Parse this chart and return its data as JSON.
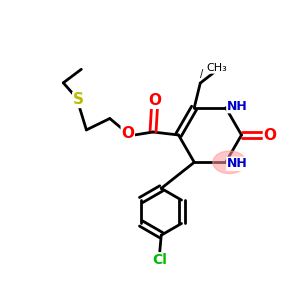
{
  "background_color": "#ffffff",
  "figsize": [
    3.0,
    3.0
  ],
  "dpi": 100,
  "bond_color": "#000000",
  "bond_width": 2.0,
  "N_color": "#0000cc",
  "O_color": "#ff0000",
  "S_color": "#bbbb00",
  "Cl_color": "#00bb00",
  "highlight_color": "#ff9999",
  "highlight_alpha": 0.55,
  "xlim": [
    0,
    10
  ],
  "ylim": [
    0,
    10
  ]
}
